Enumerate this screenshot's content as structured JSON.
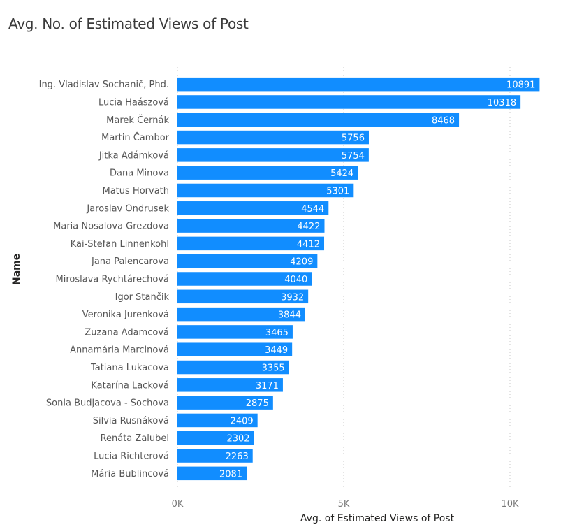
{
  "chart_data": {
    "type": "bar",
    "orientation": "horizontal",
    "title": "Avg. No. of Estimated Views of Post",
    "xlabel": "Avg. of Estimated Views of Post",
    "ylabel": "Name",
    "xlim": [
      0,
      11500
    ],
    "xticks": [
      0,
      5000,
      10000
    ],
    "xtick_labels": [
      "0K",
      "5K",
      "10K"
    ],
    "grid": true,
    "bar_color": "#118DFF",
    "categories": [
      "Ing. Vladislav Sochanič, Phd.",
      "Lucia Haászová",
      "Marek Černák",
      "Martin Čambor",
      "Jitka Adámková",
      "Dana Minova",
      "Matus Horvath",
      "Jaroslav Ondrusek",
      "Maria Nosalova Grezdova",
      "Kai-Stefan Linnenkohl",
      "Jana Palencarova",
      "Miroslava Rychtárechová",
      "Igor Stančik",
      "Veronika Jurenková",
      "Zuzana Adamcová",
      "Annamária Marcinová",
      "Tatiana Lukacova",
      "Katarína Lacková",
      "Sonia Budjacova - Sochova",
      "Silvia Rusnáková",
      "Renáta Zalubel",
      "Lucia Richterová",
      "Mária Bublincová"
    ],
    "values": [
      10891,
      10318,
      8468,
      5756,
      5754,
      5424,
      5301,
      4544,
      4422,
      4412,
      4209,
      4040,
      3932,
      3844,
      3465,
      3449,
      3355,
      3171,
      2875,
      2409,
      2302,
      2263,
      2081
    ]
  }
}
